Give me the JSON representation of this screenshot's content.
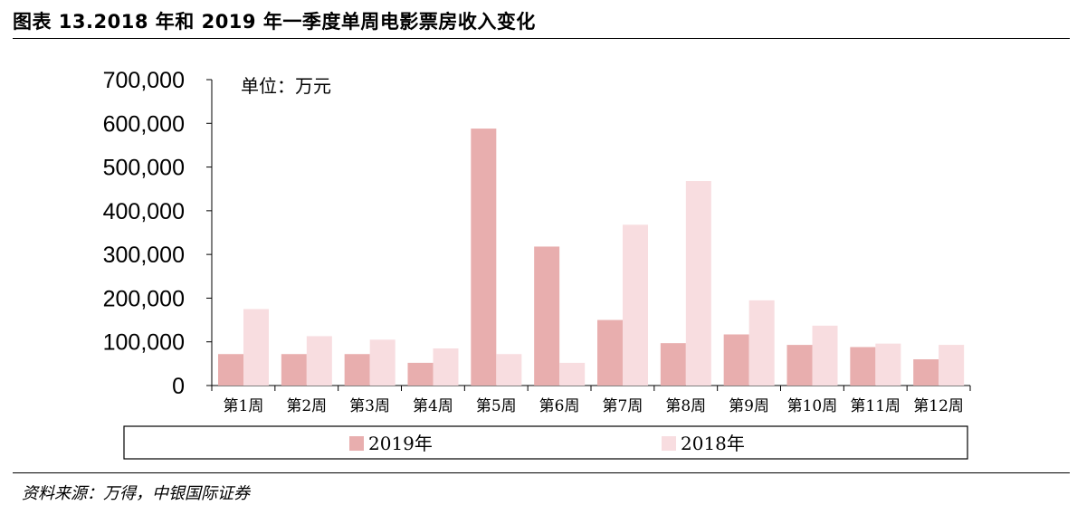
{
  "figure": {
    "title": "图表 13.2018 年和 2019 年一季度单周电影票房收入变化",
    "source": "资料来源：万得，中银国际证券"
  },
  "chart_data": {
    "type": "bar",
    "unit_label": "单位：万元",
    "categories": [
      "第1周",
      "第2周",
      "第3周",
      "第4周",
      "第5周",
      "第6周",
      "第7周",
      "第8周",
      "第9周",
      "第10周",
      "第11周",
      "第12周"
    ],
    "series": [
      {
        "name": "2019年",
        "color": "#e8aeae",
        "values": [
          72000,
          72000,
          72000,
          52000,
          588000,
          318000,
          150000,
          97000,
          117000,
          93000,
          88000,
          60000
        ]
      },
      {
        "name": "2018年",
        "color": "#f8dde0",
        "values": [
          175000,
          113000,
          105000,
          85000,
          72000,
          52000,
          368000,
          468000,
          195000,
          137000,
          96000,
          93000
        ]
      }
    ],
    "ylim": [
      0,
      700000
    ],
    "yticks": [
      0,
      100000,
      200000,
      300000,
      400000,
      500000,
      600000,
      700000
    ],
    "ytick_labels": [
      "0",
      "100,000",
      "200,000",
      "300,000",
      "400,000",
      "500,000",
      "600,000",
      "700,000"
    ],
    "legend_position": "bottom",
    "grid": false
  }
}
